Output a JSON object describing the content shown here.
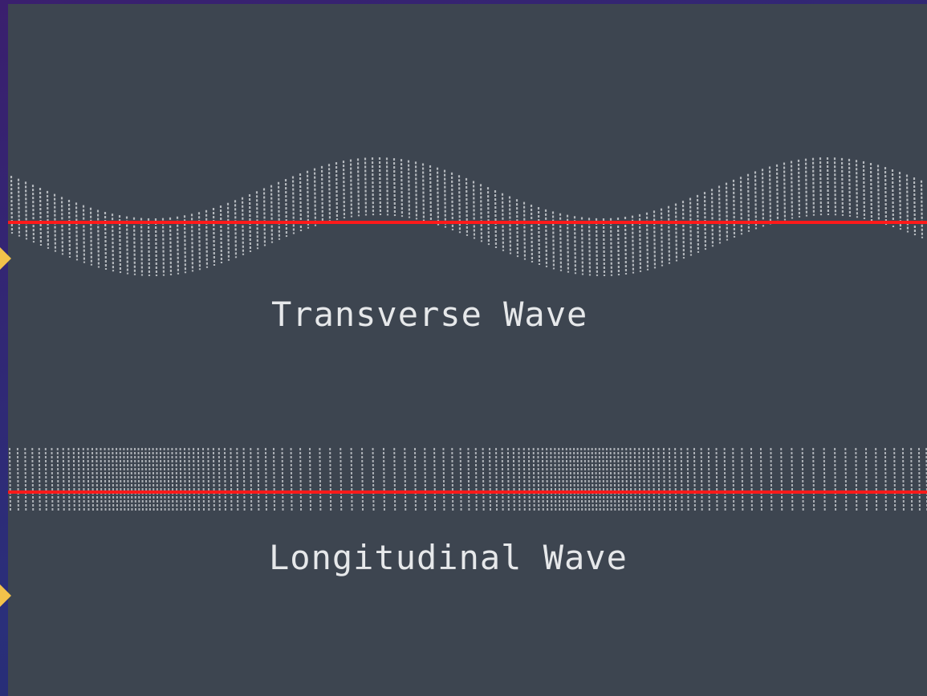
{
  "labels": {
    "transverse": "Transverse Wave",
    "longitudinal": "Longitudinal Wave"
  }
}
